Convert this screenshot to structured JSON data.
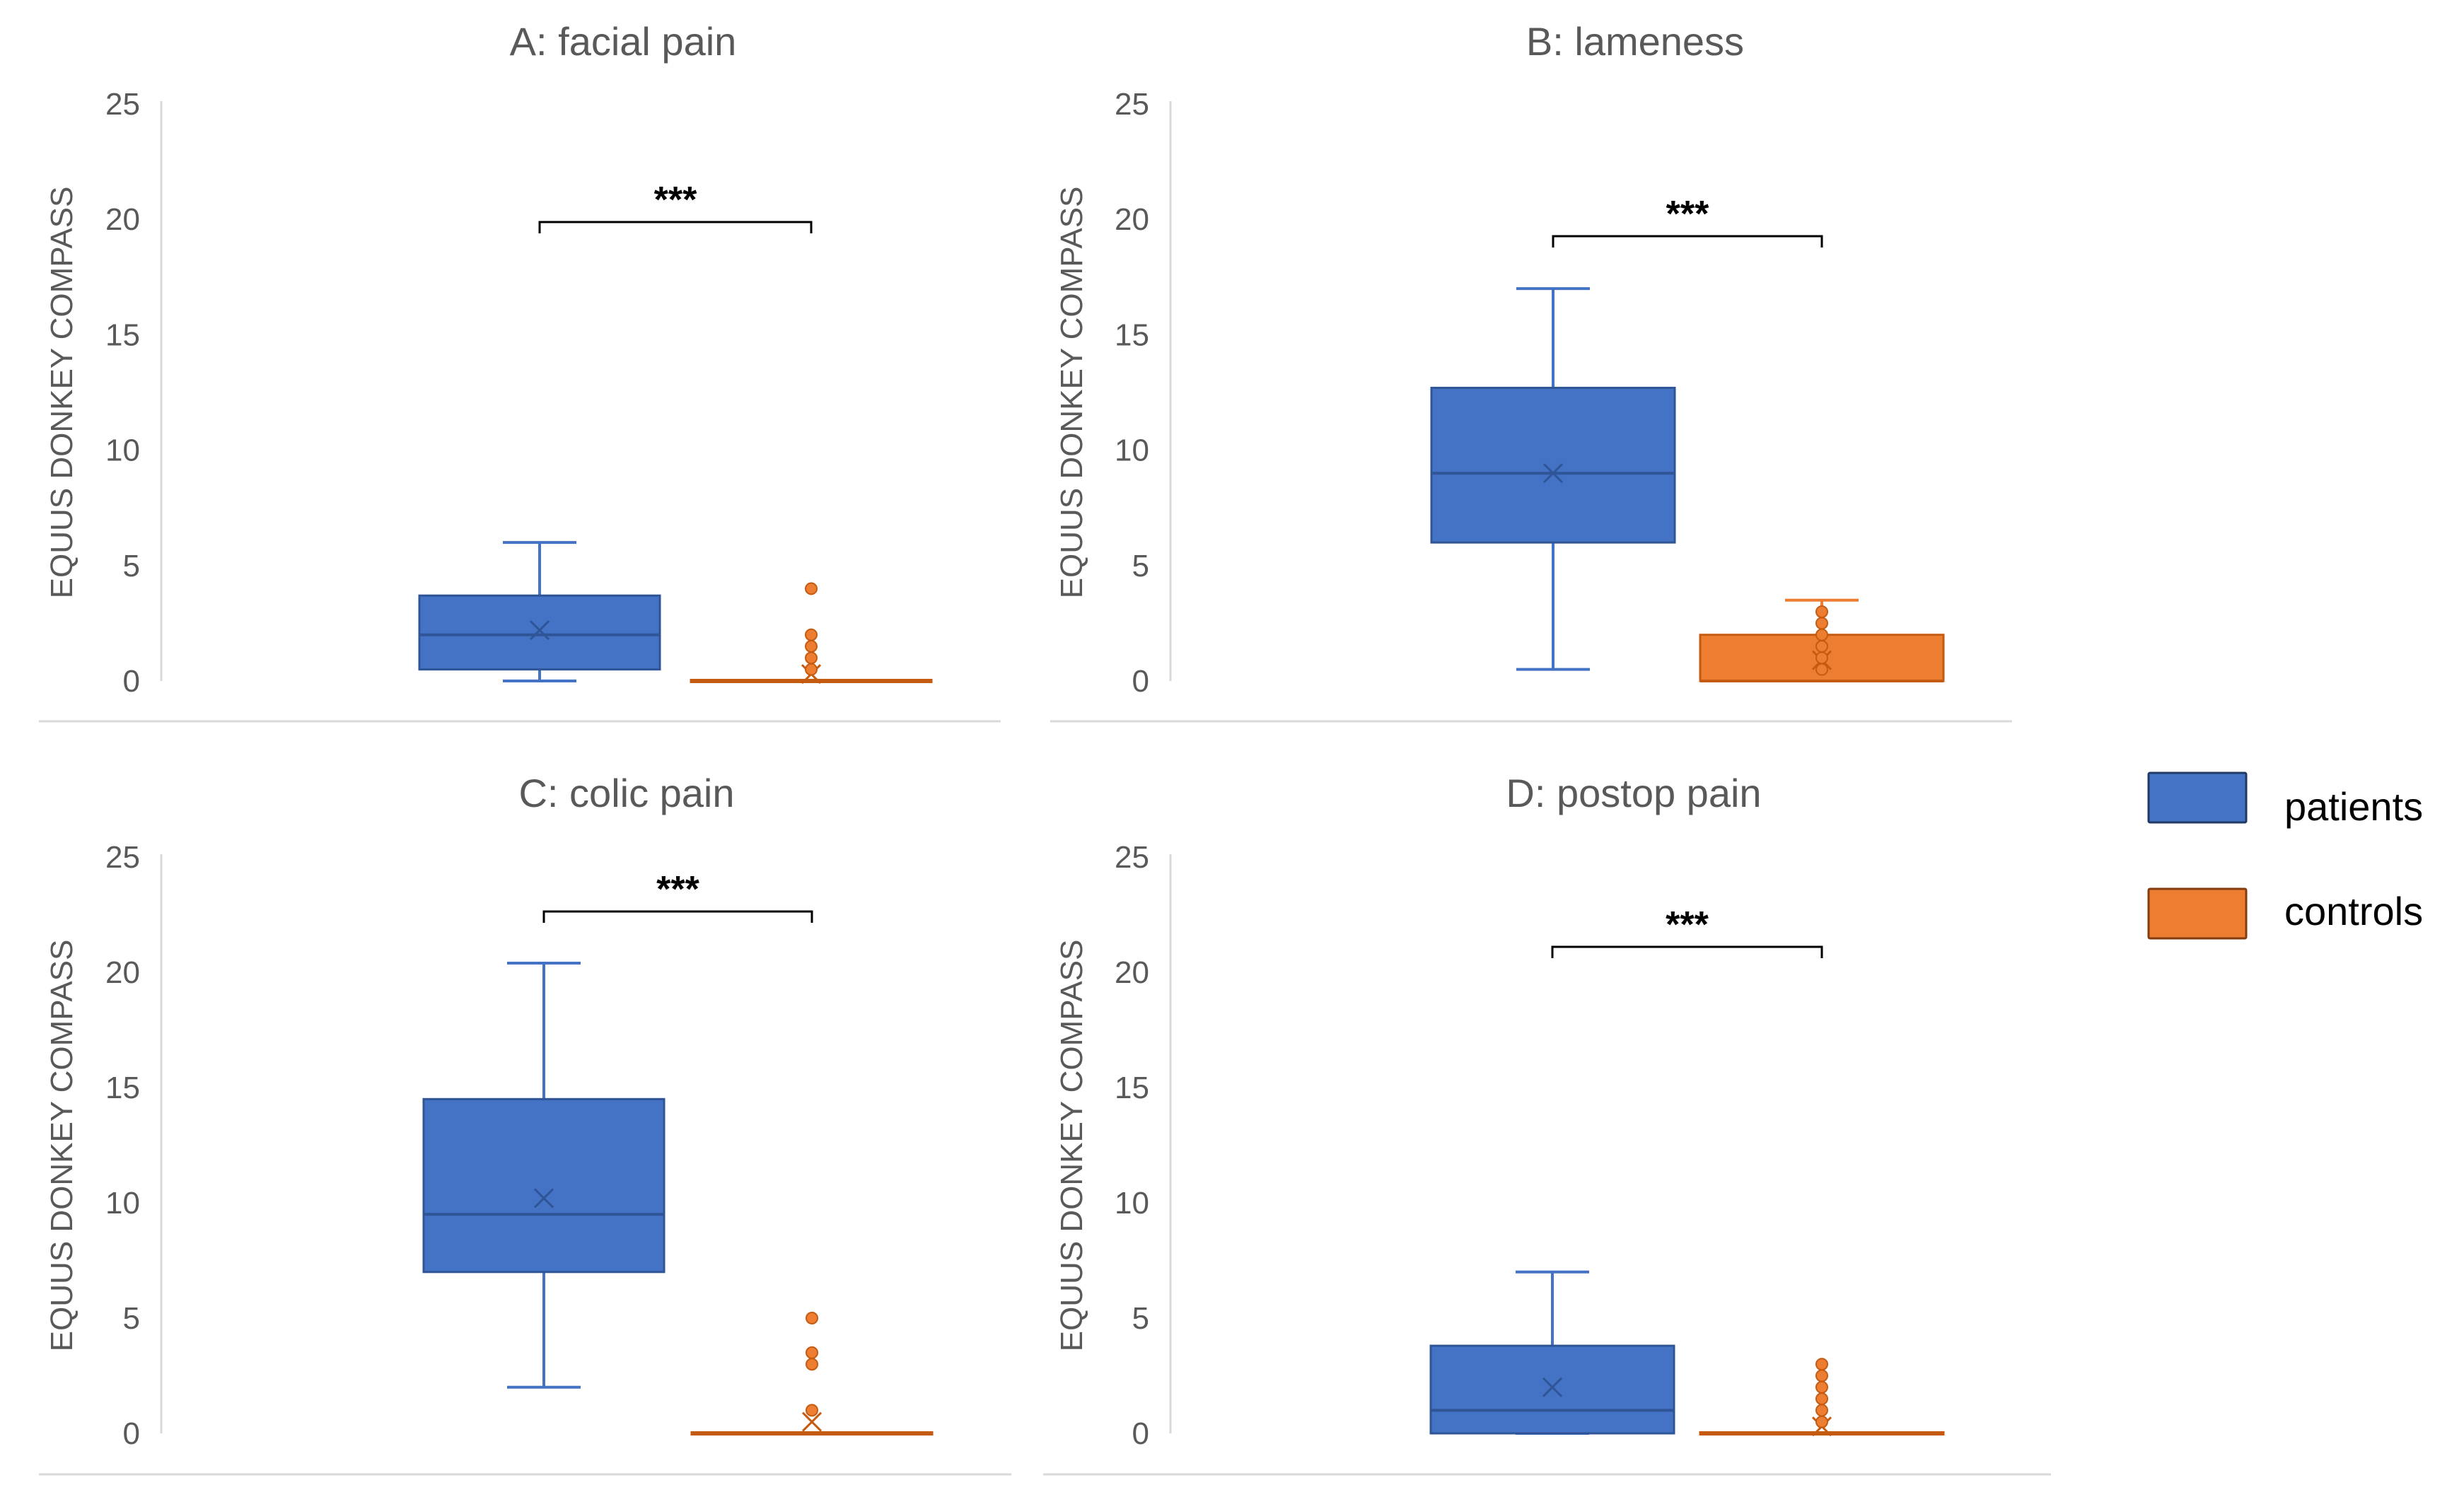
{
  "colors": {
    "patients_fill": "#4472C4",
    "patients_stroke": "#2F5597",
    "controls_fill": "#ED7D31",
    "controls_stroke": "#C55A11",
    "axis": "#D9D9D9",
    "text": "#595959",
    "bracket": "#000000"
  },
  "legend": {
    "patients": "patients",
    "controls": "controls"
  },
  "chart_data": [
    {
      "type": "box",
      "title": "A: facial pain",
      "ylabel": "EQUUS DONKEY COMPASS",
      "ylim": [
        0,
        25
      ],
      "yticks": [
        0,
        5,
        10,
        15,
        20,
        25
      ],
      "significance": "***",
      "series": [
        {
          "name": "patients",
          "min": 0,
          "q1": 0.5,
          "median": 2,
          "q3": 3.7,
          "max": 6,
          "mean": 2.2,
          "outliers": []
        },
        {
          "name": "controls",
          "min": 0,
          "q1": 0,
          "median": 0,
          "q3": 0,
          "max": 0,
          "mean": 0.3,
          "outliers": [
            0.5,
            1,
            1.5,
            2,
            4
          ]
        }
      ]
    },
    {
      "type": "box",
      "title": "B: lameness",
      "ylabel": "EQUUS DONKEY COMPASS",
      "ylim": [
        0,
        25
      ],
      "yticks": [
        0,
        5,
        10,
        15,
        20,
        25
      ],
      "significance": "***",
      "series": [
        {
          "name": "patients",
          "min": 0.5,
          "q1": 6,
          "median": 9,
          "q3": 12.7,
          "max": 17,
          "mean": 9,
          "outliers": []
        },
        {
          "name": "controls",
          "min": 0,
          "q1": 0,
          "median": 0,
          "q3": 2,
          "max": 3.5,
          "mean": 0.9,
          "outliers": [
            0.5,
            1,
            1.5,
            2,
            2.5,
            3
          ]
        }
      ]
    },
    {
      "type": "box",
      "title": "C: colic pain",
      "ylabel": "EQUUS DONKEY COMPASS",
      "ylim": [
        0,
        25
      ],
      "yticks": [
        0,
        5,
        10,
        15,
        20,
        25
      ],
      "significance": "***",
      "series": [
        {
          "name": "patients",
          "min": 2,
          "q1": 7,
          "median": 9.5,
          "q3": 14.5,
          "max": 20.4,
          "mean": 10.2,
          "outliers": []
        },
        {
          "name": "controls",
          "min": 0,
          "q1": 0,
          "median": 0,
          "q3": 0,
          "max": 0,
          "mean": 0.5,
          "outliers": [
            1,
            3,
            3.5,
            5
          ]
        }
      ]
    },
    {
      "type": "box",
      "title": "D: postop pain",
      "ylabel": "EQUUS DONKEY COMPASS",
      "ylim": [
        0,
        25
      ],
      "yticks": [
        0,
        5,
        10,
        15,
        20,
        25
      ],
      "significance": "***",
      "series": [
        {
          "name": "patients",
          "min": 0,
          "q1": 0,
          "median": 1,
          "q3": 3.8,
          "max": 7,
          "mean": 2,
          "outliers": []
        },
        {
          "name": "controls",
          "min": 0,
          "q1": 0,
          "median": 0,
          "q3": 0,
          "max": 0,
          "mean": 0.3,
          "outliers": [
            0.5,
            1,
            1.5,
            2,
            2.5,
            3
          ]
        }
      ]
    }
  ]
}
